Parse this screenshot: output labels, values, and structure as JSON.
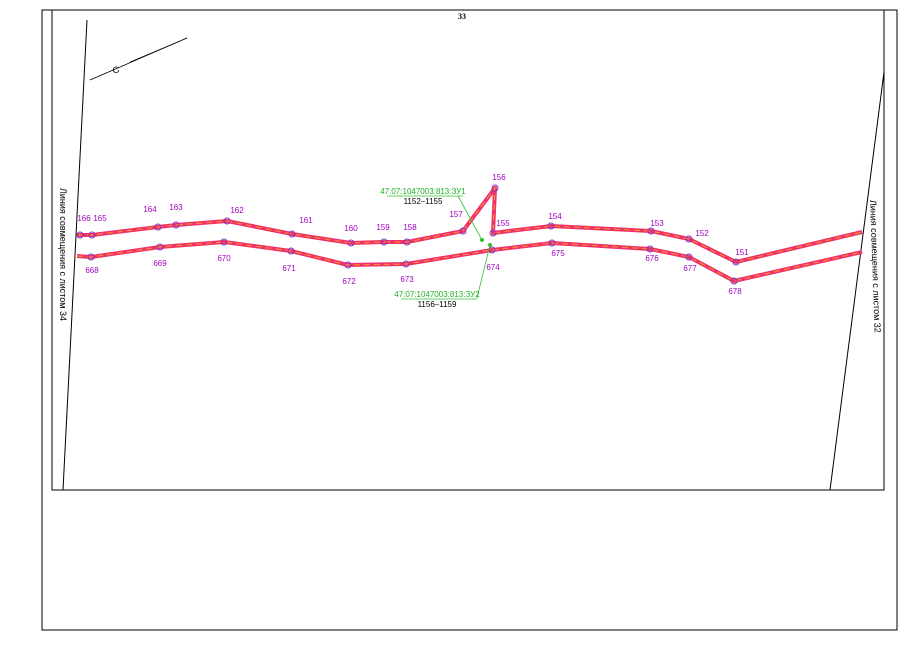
{
  "sheet_number": "33",
  "north_label": "С",
  "left_edge_label": "Линия совмещения с листом 34",
  "right_edge_label": "Линия совмещения с листом 32",
  "upper_line": {
    "points": [
      "166",
      "165",
      "164",
      "163",
      "162",
      "161",
      "160",
      "159",
      "158",
      "157",
      "156",
      "155",
      "154",
      "153",
      "152",
      "151"
    ]
  },
  "lower_line": {
    "points": [
      "668",
      "669",
      "670",
      "671",
      "672",
      "673",
      "674",
      "675",
      "676",
      "677",
      "678"
    ]
  },
  "parcels": [
    {
      "cadastral_number": "47:07:1047003:813:ЗУ1",
      "point_range": "1152–1155"
    },
    {
      "cadastral_number": "47:07:1047003:813:ЗУ2",
      "point_range": "1156–1159"
    }
  ]
}
